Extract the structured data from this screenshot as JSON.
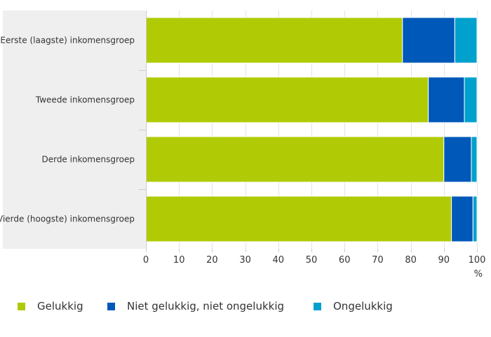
{
  "chart_data": {
    "type": "bar",
    "orientation": "horizontal",
    "stacked": true,
    "categories": [
      "Eerste (laagste) inkomensgroep",
      "Tweede inkomensgroep",
      "Derde inkomensgroep",
      "Vierde (hoogste) inkomensgroep"
    ],
    "series": [
      {
        "name": "Gelukkig",
        "color": "#b0cb05",
        "values": [
          77.5,
          85.3,
          90.0,
          92.3
        ]
      },
      {
        "name": "Niet gelukkig, niet ongelukkig",
        "color": "#0058b8",
        "values": [
          15.8,
          10.9,
          8.3,
          6.5
        ]
      },
      {
        "name": "Ongelukkig",
        "color": "#00a1cd",
        "values": [
          6.7,
          3.8,
          1.7,
          1.2
        ]
      }
    ],
    "xlim": [
      0,
      100
    ],
    "xticks": [
      0,
      10,
      20,
      30,
      40,
      50,
      60,
      70,
      80,
      90,
      100
    ],
    "unit_label": "%",
    "grid": true,
    "legend_position": "bottom"
  }
}
